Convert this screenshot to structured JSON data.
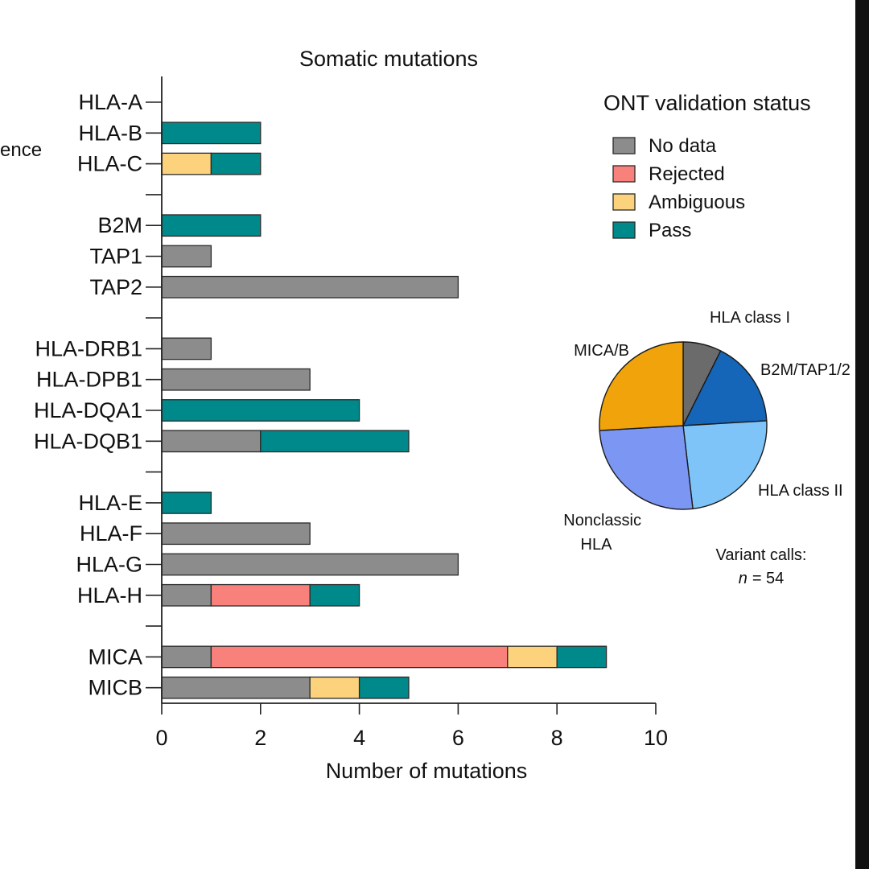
{
  "chart_data": [
    {
      "type": "bar",
      "stacked": true,
      "orientation": "horizontal",
      "title": "Somatic mutations",
      "xlabel": "Number of mutations",
      "cropped_group_label": "ence",
      "xlim": [
        0,
        10
      ],
      "xticks": [
        0,
        2,
        4,
        6,
        8,
        10
      ],
      "categories": [
        "HLA-A",
        "HLA-B",
        "HLA-C",
        "B2M",
        "TAP1",
        "TAP2",
        "HLA-DRB1",
        "HLA-DPB1",
        "HLA-DQA1",
        "HLA-DQB1",
        "HLA-E",
        "HLA-F",
        "HLA-G",
        "HLA-H",
        "MICA",
        "MICB"
      ],
      "groups": [
        [
          "HLA-A",
          "HLA-B",
          "HLA-C"
        ],
        [
          "B2M",
          "TAP1",
          "TAP2"
        ],
        [
          "HLA-DRB1",
          "HLA-DPB1",
          "HLA-DQA1",
          "HLA-DQB1"
        ],
        [
          "HLA-E",
          "HLA-F",
          "HLA-G",
          "HLA-H"
        ],
        [
          "MICA",
          "MICB"
        ]
      ],
      "series": [
        {
          "name": "No data",
          "color": "#8c8c8c",
          "values": [
            0,
            0,
            0,
            0,
            1,
            6,
            1,
            3,
            0,
            2,
            0,
            3,
            6,
            1,
            1,
            3
          ]
        },
        {
          "name": "Rejected",
          "color": "#f8817b",
          "values": [
            0,
            0,
            0,
            0,
            0,
            0,
            0,
            0,
            0,
            0,
            0,
            0,
            0,
            2,
            6,
            0
          ]
        },
        {
          "name": "Ambiguous",
          "color": "#fcd27c",
          "values": [
            0,
            0,
            1,
            0,
            0,
            0,
            0,
            0,
            0,
            0,
            0,
            0,
            0,
            0,
            1,
            1
          ]
        },
        {
          "name": "Pass",
          "color": "#00898a",
          "values": [
            0,
            2,
            1,
            2,
            0,
            0,
            0,
            0,
            4,
            3,
            1,
            0,
            0,
            1,
            1,
            1
          ]
        }
      ],
      "legend": {
        "title": "ONT validation status",
        "placement": "top-right"
      }
    },
    {
      "type": "pie",
      "slices": [
        {
          "label": "HLA class I",
          "value": 4,
          "color": "#6b6b6b"
        },
        {
          "label": "B2M/TAP1/2",
          "value": 9,
          "color": "#1565b8"
        },
        {
          "label": "HLA class II",
          "value": 13,
          "color": "#7fc4f8"
        },
        {
          "label": "Nonclassic HLA",
          "value": 14,
          "color": "#7c96f4"
        },
        {
          "label": "MICA/B",
          "value": 14,
          "color": "#f0a30a"
        }
      ],
      "annotation_line1": "Variant calls:",
      "annotation_n_symbol": "n",
      "annotation_n_value": "= 54"
    }
  ]
}
